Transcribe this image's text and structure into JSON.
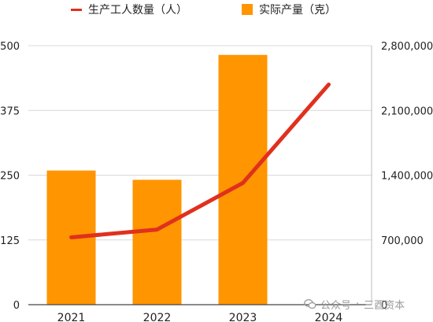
{
  "chart_data": {
    "type": "bar",
    "categories": [
      "2021",
      "2022",
      "2023",
      "2024"
    ],
    "series": [
      {
        "name": "实际产量（克）",
        "type": "bar",
        "axis": "right",
        "color": "#FF9500",
        "values": [
          1450000,
          1350000,
          2700000,
          null
        ]
      },
      {
        "name": "生产工人数量（人）",
        "type": "line",
        "axis": "left",
        "color": "#E0301E",
        "values": [
          130,
          145,
          235,
          425
        ]
      }
    ],
    "y_left": {
      "lim": [
        0,
        500
      ],
      "ticks": [
        "0",
        "125",
        "250",
        "375",
        "500"
      ]
    },
    "y_right": {
      "lim": [
        0,
        2800000
      ],
      "ticks": [
        "0",
        "700,000",
        "1,400,000",
        "2,100,000",
        "2,800,000"
      ]
    },
    "grid": true,
    "legend_position": "top"
  },
  "legend": {
    "line_label": "生产工人数量（人）",
    "bar_label": "实际产量（克）"
  },
  "watermark": {
    "left": "公众号",
    "right": "三酉资本"
  }
}
